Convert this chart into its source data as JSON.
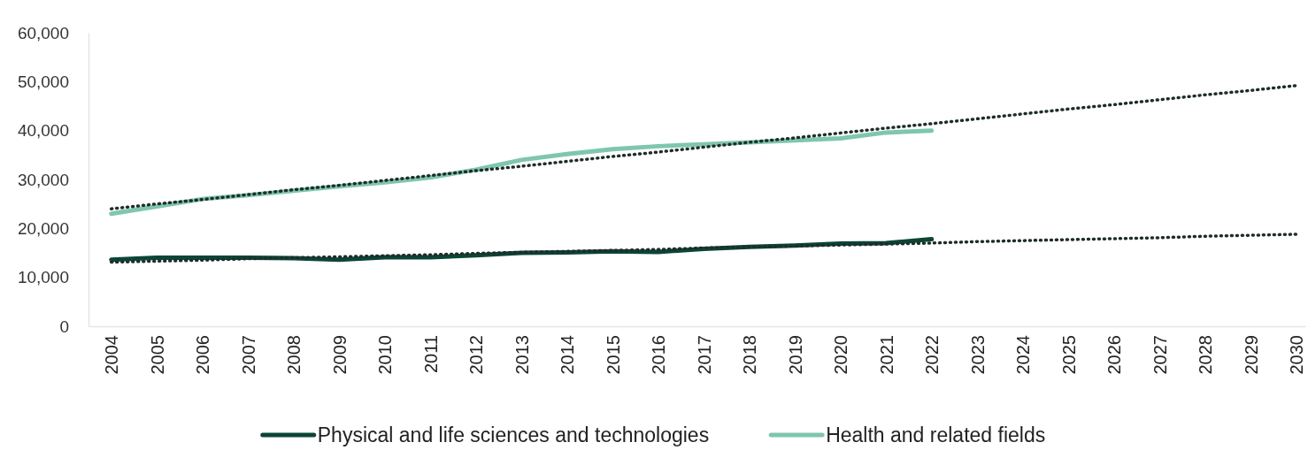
{
  "chart_data": {
    "type": "line",
    "x": [
      2004,
      2005,
      2006,
      2007,
      2008,
      2009,
      2010,
      2011,
      2012,
      2013,
      2014,
      2015,
      2016,
      2017,
      2018,
      2019,
      2020,
      2021,
      2022,
      2023,
      2024,
      2025,
      2026,
      2027,
      2028,
      2029,
      2030
    ],
    "series": [
      {
        "name": "Physical and life sciences and technologies",
        "color": "#0b4536",
        "values": [
          13600,
          14000,
          14000,
          14000,
          13900,
          13600,
          14100,
          14100,
          14500,
          15000,
          15100,
          15300,
          15200,
          15800,
          16200,
          16500,
          16900,
          17000,
          17800,
          null,
          null,
          null,
          null,
          null,
          null,
          null,
          null
        ]
      },
      {
        "name": "Health and related fields",
        "color": "#7fc6ae",
        "values": [
          23000,
          24500,
          26000,
          26800,
          27700,
          28600,
          29400,
          30400,
          32000,
          34000,
          35200,
          36200,
          36800,
          37200,
          37600,
          38000,
          38400,
          39600,
          40000,
          null,
          null,
          null,
          null,
          null,
          null,
          null,
          null
        ]
      },
      {
        "type": "line",
        "color": "#1f2d2a",
        "line_style": "dotted",
        "values": [
          13100,
          13300,
          13500,
          13800,
          14000,
          14200,
          14400,
          14600,
          14900,
          15100,
          15300,
          15500,
          15700,
          16000,
          16200,
          16400,
          16600,
          16800,
          17000,
          17300,
          17500,
          17700,
          17900,
          18100,
          18400,
          18600,
          18800
        ]
      },
      {
        "type": "line",
        "color": "#1f2d2a",
        "line_style": "dotted",
        "values": [
          24000,
          25000,
          25900,
          26900,
          27900,
          28800,
          29800,
          30800,
          31800,
          32700,
          33700,
          34700,
          35600,
          36600,
          37600,
          38500,
          39500,
          40500,
          41400,
          42400,
          43400,
          44400,
          45300,
          46300,
          47300,
          48200,
          49200
        ]
      }
    ],
    "xlim": [
      2003.5,
      2030.2
    ],
    "xticks": [
      2004,
      2005,
      2006,
      2007,
      2008,
      2009,
      2010,
      2011,
      2012,
      2013,
      2014,
      2015,
      2016,
      2017,
      2018,
      2019,
      2020,
      2021,
      2022,
      2023,
      2024,
      2025,
      2026,
      2027,
      2028,
      2029,
      2030
    ],
    "ylim": [
      0,
      60000
    ],
    "yticks": [
      {
        "value": 0,
        "label": "0"
      },
      {
        "value": 10000,
        "label": "10,000"
      },
      {
        "value": 20000,
        "label": "20,000"
      },
      {
        "value": 30000,
        "label": "30,000"
      },
      {
        "value": 40000,
        "label": "40,000"
      },
      {
        "value": 50000,
        "label": "50,000"
      },
      {
        "value": 60000,
        "label": "60,000"
      }
    ],
    "grid": false,
    "legend": "bottom",
    "marker": "none",
    "line_style": "solid"
  }
}
